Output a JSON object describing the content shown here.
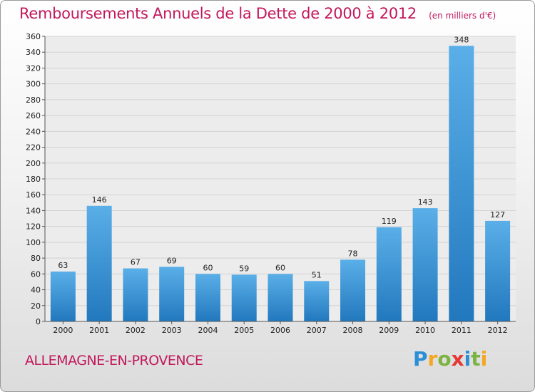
{
  "header": {
    "title": "Remboursements Annuels de la Dette de 2000 à 2012",
    "subtitle": "(en milliers d'€)"
  },
  "footer": {
    "city": "ALLEMAGNE-EN-PROVENCE",
    "logo": [
      "P",
      "r",
      "o",
      "x",
      "i",
      "t",
      "i"
    ],
    "logo_colors": [
      "#2b8fd6",
      "#f5a623",
      "#7cb342",
      "#e53935",
      "#2b8fd6",
      "#7cb342",
      "#f5a623"
    ]
  },
  "chart_data": {
    "type": "bar",
    "title": "Remboursements Annuels de la Dette de 2000 à 2012",
    "categories": [
      "2000",
      "2001",
      "2002",
      "2003",
      "2004",
      "2005",
      "2006",
      "2007",
      "2008",
      "2009",
      "2010",
      "2011",
      "2012"
    ],
    "values": [
      63,
      146,
      67,
      69,
      60,
      59,
      60,
      51,
      78,
      119,
      143,
      348,
      127
    ],
    "yticks": [
      "0",
      "20",
      "40",
      "60",
      "80",
      "100",
      "120",
      "140",
      "160",
      "180",
      "200",
      "220",
      "240",
      "260",
      "280",
      "300",
      "320",
      "340",
      "360"
    ],
    "ylim": [
      0,
      360
    ],
    "grid": true,
    "bar_color": "#3d99dc"
  }
}
